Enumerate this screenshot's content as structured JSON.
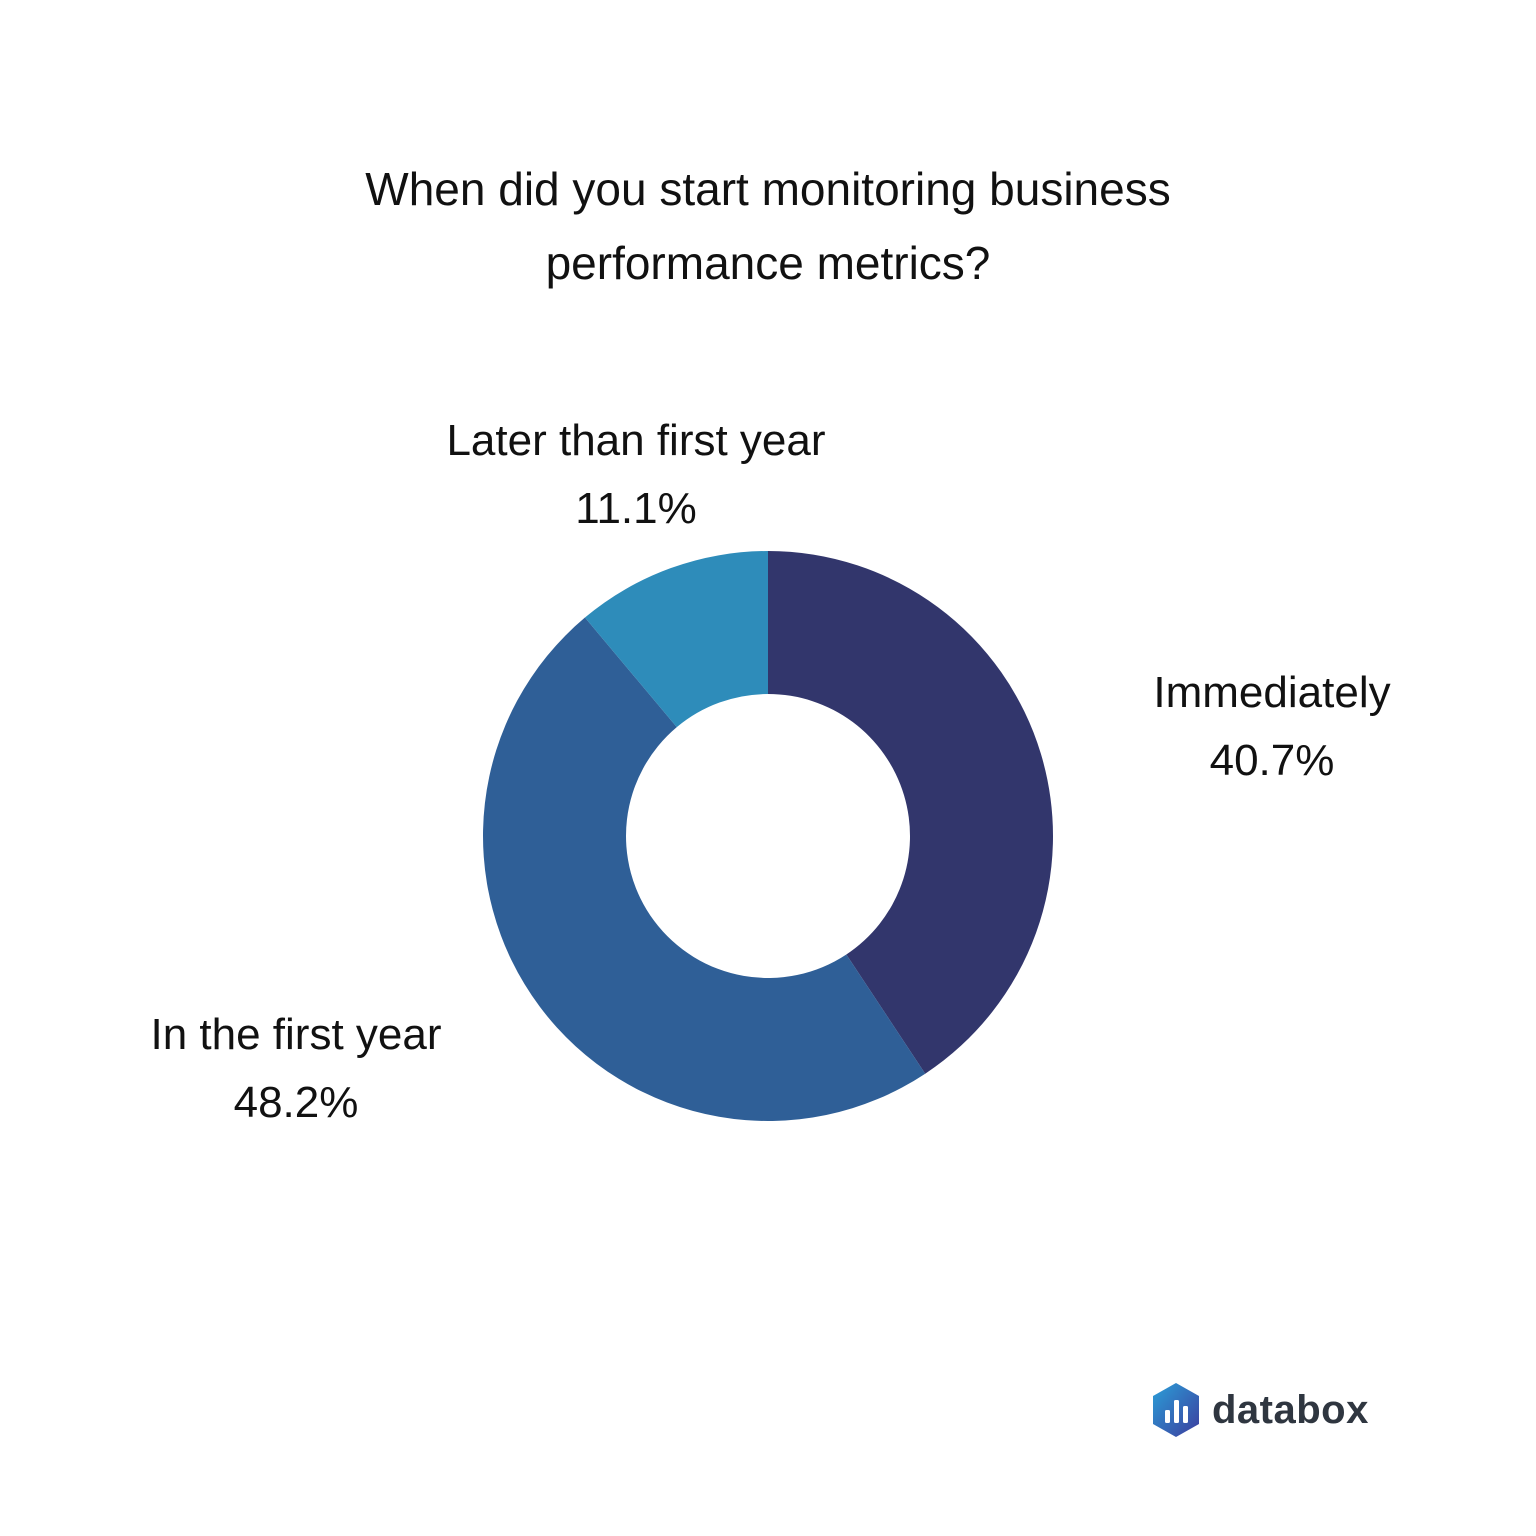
{
  "chart_data": {
    "type": "pie",
    "title": "When did you start monitoring business performance metrics?",
    "title_lines": [
      "When did you start monitoring business",
      "performance metrics?"
    ],
    "donut": true,
    "slices": [
      {
        "label": "Immediately",
        "value": 40.7,
        "display": "40.7%",
        "color": "#32366c"
      },
      {
        "label": "In the first year",
        "value": 48.2,
        "display": "48.2%",
        "color": "#2f5f97"
      },
      {
        "label": "Later than first year",
        "value": 11.1,
        "display": "11.1%",
        "color": "#2e8cba"
      }
    ]
  },
  "brand": {
    "name": "databox",
    "icon": "databox-logo-icon"
  }
}
